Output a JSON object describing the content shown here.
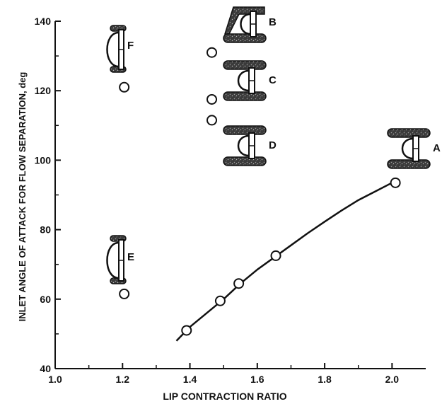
{
  "chart_data": {
    "type": "scatter",
    "xlabel": "LIP CONTRACTION RATIO",
    "ylabel": "INLET ANGLE OF ATTACK FOR FLOW SEPARATION, deg",
    "xlim": [
      1.0,
      2.1
    ],
    "ylim": [
      40,
      140
    ],
    "x_ticks": [
      "1.0",
      "1.2",
      "1.4",
      "1.6",
      "1.8",
      "2.0"
    ],
    "y_ticks": [
      "40",
      "60",
      "80",
      "100",
      "120",
      "140"
    ],
    "grid": false,
    "series": [
      {
        "points": [
          {
            "x": 1.39,
            "y": 51
          },
          {
            "x": 1.49,
            "y": 59.5
          },
          {
            "x": 1.545,
            "y": 64.5
          },
          {
            "x": 1.655,
            "y": 72.5
          },
          {
            "x": 2.01,
            "y": 93.5
          }
        ],
        "fit_curve": [
          [
            1.36,
            48
          ],
          [
            1.4,
            52
          ],
          [
            1.45,
            56
          ],
          [
            1.5,
            60
          ],
          [
            1.55,
            64.5
          ],
          [
            1.6,
            68.5
          ],
          [
            1.65,
            72
          ],
          [
            1.7,
            75.5
          ],
          [
            1.75,
            79
          ],
          [
            1.8,
            82.3
          ],
          [
            1.85,
            85.5
          ],
          [
            1.9,
            88.5
          ],
          [
            1.95,
            91
          ],
          [
            2.0,
            93.5
          ]
        ]
      },
      {
        "points": [
          {
            "x": 1.205,
            "y": 121
          },
          {
            "x": 1.205,
            "y": 61.5
          },
          {
            "x": 1.465,
            "y": 131
          },
          {
            "x": 1.465,
            "y": 117.5
          },
          {
            "x": 1.465,
            "y": 111.5
          }
        ]
      }
    ],
    "inlets": [
      {
        "label": "A",
        "type": "large"
      },
      {
        "label": "B",
        "type": "flared"
      },
      {
        "label": "C",
        "type": "large"
      },
      {
        "label": "D",
        "type": "large"
      },
      {
        "label": "E",
        "type": "thin"
      },
      {
        "label": "F",
        "type": "thin-full"
      }
    ]
  }
}
